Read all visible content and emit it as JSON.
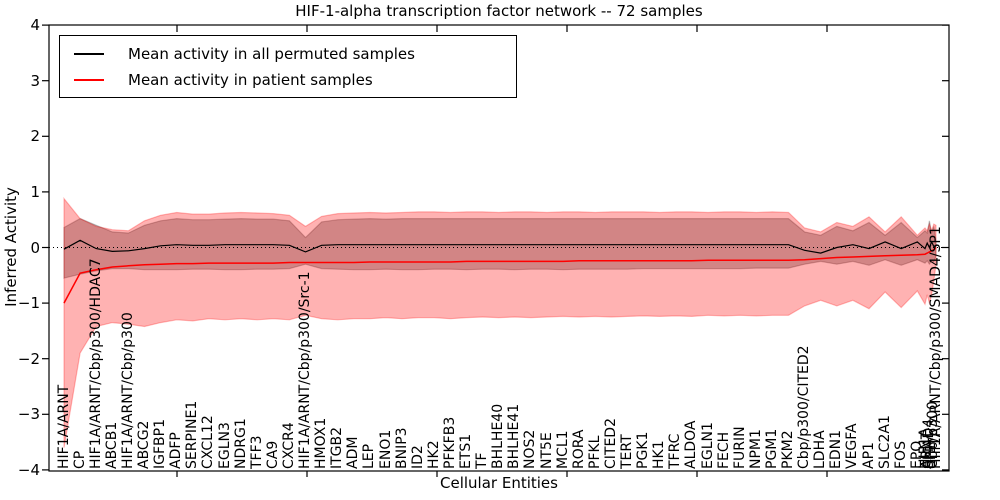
{
  "chart_data": {
    "type": "line",
    "title": "HIF-1-alpha transcription factor network -- 72 samples",
    "xlabel": "Cellular Entities",
    "ylabel": "Inferred Activity",
    "ylim": [
      -4,
      4
    ],
    "yticks": [
      4,
      3,
      2,
      1,
      0,
      -1,
      -2,
      -3,
      -4
    ],
    "grid": false,
    "zero_line_style": "dotted",
    "legend_position": "upper left",
    "colors": {
      "permuted": "#000000",
      "patient": "#ff0000",
      "frame": "#000000"
    },
    "categories": [
      "HIF1A/ARNT",
      "CP",
      "HIF1A/ARNT/Cbp/p300/HDAC7",
      "ABCB1",
      "HIF1A/ARNT/Cbp/p300",
      "ABCG2",
      "IGFBP1",
      "ADFP",
      "SERPINE1",
      "CXCL12",
      "EGLN3",
      "NDRG1",
      "TFF3",
      "CA9",
      "CXCR4",
      "HIF1A/ARNT/Cbp/p300/Src-1",
      "HMOX1",
      "ITGB2",
      "ADM",
      "LEP",
      "ENO1",
      "BNIP3",
      "ID2",
      "HK2",
      "PFKFB3",
      "ETS1",
      "TF",
      "BHLHE40",
      "BHLHE41",
      "NOS2",
      "NT5E",
      "MCL1",
      "RORA",
      "PFKL",
      "CITED2",
      "TERT",
      "PGK1",
      "HK1",
      "TFRC",
      "ALDOA",
      "EGLN1",
      "FECH",
      "FURIN",
      "NPM1",
      "PGM1",
      "PKM2",
      "Cbp/p300/CITED2",
      "LDHA",
      "EDN1",
      "VEGFA",
      "AP1",
      "SLC2A1",
      "FOS",
      "EPO",
      "HIF1A",
      "ARNT",
      "SMAD4",
      "SP1",
      "Cbp/p300",
      "HIF1A/ARNT/Cbp/p300/SMAD4/SP1"
    ],
    "series": [
      {
        "name": "Mean activity in all permuted samples",
        "color": "#000000",
        "values": [
          -0.03,
          0.13,
          -0.02,
          -0.07,
          -0.06,
          -0.02,
          0.03,
          0.05,
          0.04,
          0.04,
          0.05,
          0.05,
          0.05,
          0.05,
          0.04,
          -0.08,
          0.04,
          0.05,
          0.05,
          0.05,
          0.05,
          0.05,
          0.05,
          0.05,
          0.05,
          0.05,
          0.05,
          0.05,
          0.05,
          0.05,
          0.05,
          0.05,
          0.05,
          0.05,
          0.05,
          0.05,
          0.05,
          0.05,
          0.05,
          0.05,
          0.05,
          0.05,
          0.05,
          0.05,
          0.05,
          0.05,
          -0.05,
          -0.1,
          0.0,
          0.05,
          -0.02,
          0.1,
          -0.02,
          0.1,
          -0.02,
          0.08,
          0.0,
          0.1,
          0.02,
          0.04
        ]
      },
      {
        "name": "Mean activity in patient samples",
        "color": "#ff0000",
        "values": [
          -1.0,
          -0.46,
          -0.4,
          -0.35,
          -0.33,
          -0.31,
          -0.3,
          -0.29,
          -0.29,
          -0.28,
          -0.28,
          -0.28,
          -0.28,
          -0.28,
          -0.27,
          -0.27,
          -0.27,
          -0.27,
          -0.27,
          -0.26,
          -0.26,
          -0.26,
          -0.26,
          -0.26,
          -0.26,
          -0.25,
          -0.25,
          -0.25,
          -0.25,
          -0.25,
          -0.25,
          -0.25,
          -0.24,
          -0.24,
          -0.24,
          -0.24,
          -0.24,
          -0.24,
          -0.24,
          -0.24,
          -0.23,
          -0.23,
          -0.23,
          -0.23,
          -0.23,
          -0.23,
          -0.22,
          -0.2,
          -0.18,
          -0.17,
          -0.16,
          -0.15,
          -0.14,
          -0.13,
          -0.12,
          -0.1,
          -0.08,
          -0.06,
          -0.04,
          0.0
        ]
      }
    ],
    "bands": [
      {
        "name": "permuted-samples-std-band",
        "color": "#000000",
        "opacity": 0.25,
        "top": [
          0.36,
          0.52,
          0.4,
          0.28,
          0.26,
          0.4,
          0.48,
          0.52,
          0.5,
          0.5,
          0.51,
          0.52,
          0.51,
          0.51,
          0.48,
          0.18,
          0.46,
          0.5,
          0.51,
          0.52,
          0.51,
          0.52,
          0.52,
          0.52,
          0.52,
          0.52,
          0.52,
          0.52,
          0.52,
          0.52,
          0.52,
          0.52,
          0.52,
          0.52,
          0.52,
          0.52,
          0.52,
          0.52,
          0.52,
          0.52,
          0.52,
          0.52,
          0.52,
          0.52,
          0.52,
          0.52,
          0.28,
          0.22,
          0.38,
          0.3,
          0.45,
          0.22,
          0.45,
          0.18,
          0.3,
          0.26,
          0.48,
          0.26,
          0.38,
          0.12
        ],
        "bottom": [
          -0.55,
          -0.48,
          -0.42,
          -0.38,
          -0.38,
          -0.4,
          -0.4,
          -0.4,
          -0.39,
          -0.39,
          -0.4,
          -0.4,
          -0.39,
          -0.39,
          -0.38,
          -0.3,
          -0.38,
          -0.39,
          -0.4,
          -0.4,
          -0.39,
          -0.4,
          -0.4,
          -0.39,
          -0.39,
          -0.4,
          -0.39,
          -0.39,
          -0.4,
          -0.39,
          -0.39,
          -0.4,
          -0.39,
          -0.39,
          -0.39,
          -0.39,
          -0.38,
          -0.38,
          -0.38,
          -0.38,
          -0.38,
          -0.38,
          -0.38,
          -0.37,
          -0.37,
          -0.37,
          -0.3,
          -0.25,
          -0.3,
          -0.25,
          -0.32,
          -0.22,
          -0.32,
          -0.22,
          -0.28,
          -0.24,
          -0.3,
          -0.24,
          -0.26,
          -0.15
        ]
      },
      {
        "name": "patient-samples-std-band",
        "color": "#ff0000",
        "opacity": 0.3,
        "top": [
          0.88,
          0.52,
          0.38,
          0.32,
          0.3,
          0.48,
          0.58,
          0.63,
          0.6,
          0.6,
          0.62,
          0.63,
          0.62,
          0.61,
          0.58,
          0.38,
          0.56,
          0.61,
          0.62,
          0.63,
          0.62,
          0.63,
          0.64,
          0.64,
          0.63,
          0.64,
          0.64,
          0.63,
          0.64,
          0.64,
          0.63,
          0.64,
          0.64,
          0.63,
          0.64,
          0.64,
          0.64,
          0.63,
          0.64,
          0.64,
          0.63,
          0.64,
          0.64,
          0.63,
          0.64,
          0.63,
          0.35,
          0.28,
          0.45,
          0.38,
          0.55,
          0.28,
          0.55,
          0.22,
          0.35,
          0.3,
          0.42,
          0.3,
          0.42,
          0.4
        ],
        "bottom": [
          -3.6,
          -1.9,
          -1.42,
          -1.35,
          -1.38,
          -1.42,
          -1.35,
          -1.3,
          -1.32,
          -1.28,
          -1.3,
          -1.28,
          -1.3,
          -1.28,
          -1.3,
          -1.22,
          -1.28,
          -1.3,
          -1.28,
          -1.28,
          -1.26,
          -1.28,
          -1.26,
          -1.26,
          -1.28,
          -1.26,
          -1.25,
          -1.26,
          -1.25,
          -1.26,
          -1.25,
          -1.24,
          -1.25,
          -1.24,
          -1.25,
          -1.24,
          -1.23,
          -1.24,
          -1.23,
          -1.24,
          -1.22,
          -1.23,
          -1.22,
          -1.23,
          -1.22,
          -1.22,
          -1.05,
          -0.95,
          -1.05,
          -0.95,
          -1.1,
          -0.8,
          -1.08,
          -0.78,
          -1.02,
          -0.85,
          -1.0,
          -0.85,
          -0.6,
          -0.3
        ]
      }
    ]
  }
}
